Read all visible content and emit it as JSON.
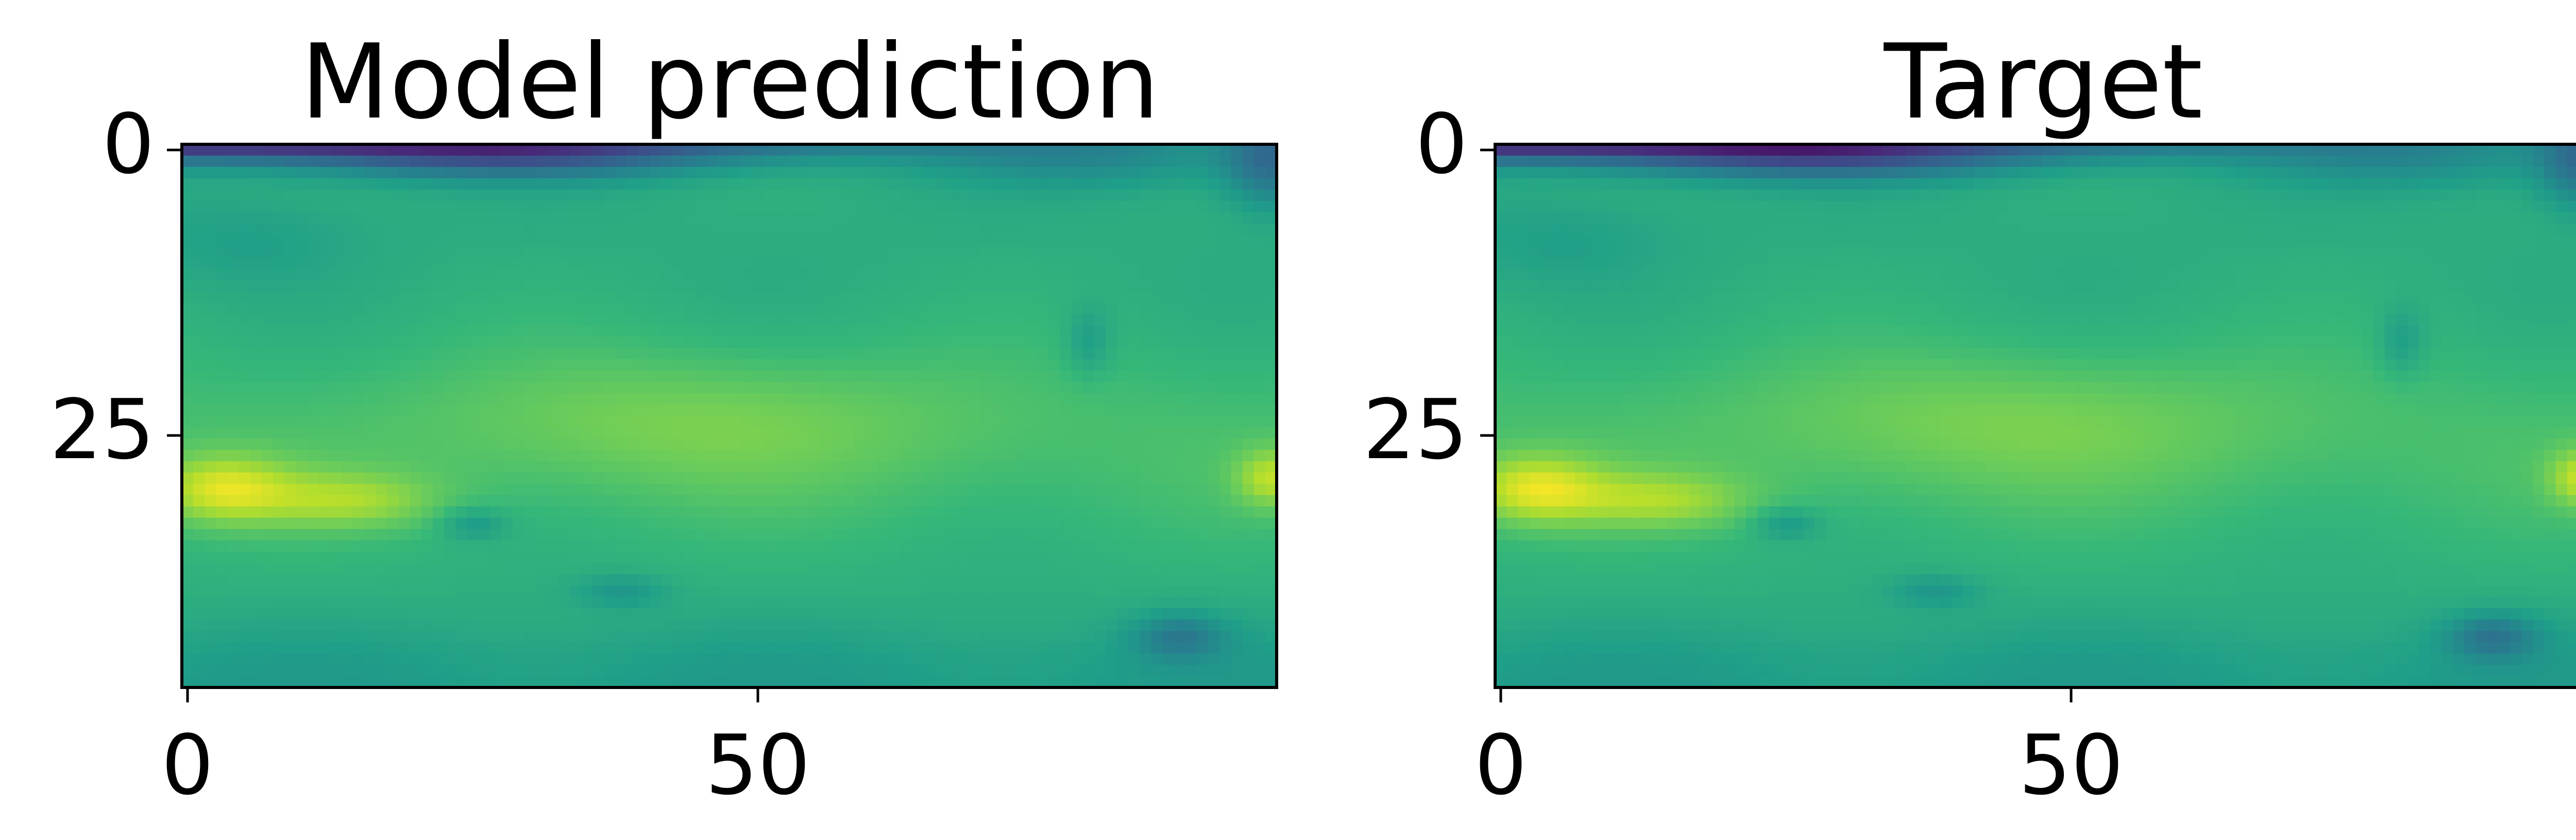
{
  "chart_data": [
    {
      "type": "heatmap",
      "title": "Model prediction",
      "colormap": "viridis",
      "xlim": [
        -0.5,
        95.5
      ],
      "ylim": [
        47.5,
        -0.5
      ],
      "xticks": [
        0,
        50
      ],
      "xtick_labels": [
        "0",
        "50"
      ],
      "yticks": [
        0,
        25
      ],
      "ytick_labels": [
        "0",
        "25"
      ],
      "grid_shape": [
        48,
        96
      ],
      "field_description": "smooth global field; low values (dark purple) along top rows, mid values (teal/green) over most of the domain, high values (yellow) in a band near rows 25-35 especially at left edge",
      "blobs": [
        {
          "x": 0,
          "y": -1,
          "sx": 60,
          "sy": 2.0,
          "a": -0.55
        },
        {
          "x": 28,
          "y": 1,
          "sx": 18,
          "sy": 2.0,
          "a": -0.2
        },
        {
          "x": 80,
          "y": 1,
          "sx": 14,
          "sy": 2.5,
          "a": -0.12
        },
        {
          "x": 95,
          "y": 1,
          "sx": 4,
          "sy": 4.0,
          "a": -0.25
        },
        {
          "x": 3,
          "y": 30,
          "sx": 6,
          "sy": 3.0,
          "a": 0.25
        },
        {
          "x": 14,
          "y": 31,
          "sx": 8,
          "sy": 2.5,
          "a": 0.18
        },
        {
          "x": 95,
          "y": 29,
          "sx": 3,
          "sy": 2.5,
          "a": 0.2
        },
        {
          "x": 45,
          "y": 24,
          "sx": 22,
          "sy": 6.0,
          "a": 0.1
        },
        {
          "x": 25,
          "y": 33,
          "sx": 3,
          "sy": 1.5,
          "a": -0.12
        },
        {
          "x": 38,
          "y": 39,
          "sx": 4,
          "sy": 1.5,
          "a": -0.1
        },
        {
          "x": 87,
          "y": 43,
          "sx": 4,
          "sy": 2.0,
          "a": -0.18
        },
        {
          "x": 5,
          "y": 8,
          "sx": 10,
          "sy": 4.0,
          "a": -0.06
        },
        {
          "x": 79,
          "y": 17,
          "sx": 2,
          "sy": 3.0,
          "a": -0.1
        }
      ]
    },
    {
      "type": "heatmap",
      "title": "Target",
      "colormap": "viridis",
      "xlim": [
        -0.5,
        95.5
      ],
      "ylim": [
        47.5,
        -0.5
      ],
      "xticks": [
        0,
        50
      ],
      "xtick_labels": [
        "0",
        "50"
      ],
      "yticks": [
        0,
        25
      ],
      "ytick_labels": [
        "0",
        "25"
      ],
      "grid_shape": [
        48,
        96
      ],
      "field_description": "nearly identical to the model prediction field",
      "blobs": [
        {
          "x": 0,
          "y": -1,
          "sx": 60,
          "sy": 2.0,
          "a": -0.57
        },
        {
          "x": 28,
          "y": 1,
          "sx": 18,
          "sy": 2.0,
          "a": -0.22
        },
        {
          "x": 80,
          "y": 1,
          "sx": 14,
          "sy": 2.5,
          "a": -0.12
        },
        {
          "x": 95,
          "y": 1,
          "sx": 4,
          "sy": 4.0,
          "a": -0.25
        },
        {
          "x": 3,
          "y": 30,
          "sx": 6,
          "sy": 3.0,
          "a": 0.26
        },
        {
          "x": 14,
          "y": 31,
          "sx": 8,
          "sy": 2.5,
          "a": 0.18
        },
        {
          "x": 95,
          "y": 29,
          "sx": 3,
          "sy": 2.5,
          "a": 0.22
        },
        {
          "x": 45,
          "y": 24,
          "sx": 22,
          "sy": 6.0,
          "a": 0.1
        },
        {
          "x": 25,
          "y": 33,
          "sx": 3,
          "sy": 1.5,
          "a": -0.12
        },
        {
          "x": 38,
          "y": 39,
          "sx": 4,
          "sy": 1.5,
          "a": -0.1
        },
        {
          "x": 87,
          "y": 43,
          "sx": 4,
          "sy": 2.0,
          "a": -0.2
        },
        {
          "x": 5,
          "y": 8,
          "sx": 10,
          "sy": 4.0,
          "a": -0.06
        },
        {
          "x": 79,
          "y": 17,
          "sx": 2,
          "sy": 3.0,
          "a": -0.1
        }
      ]
    }
  ]
}
